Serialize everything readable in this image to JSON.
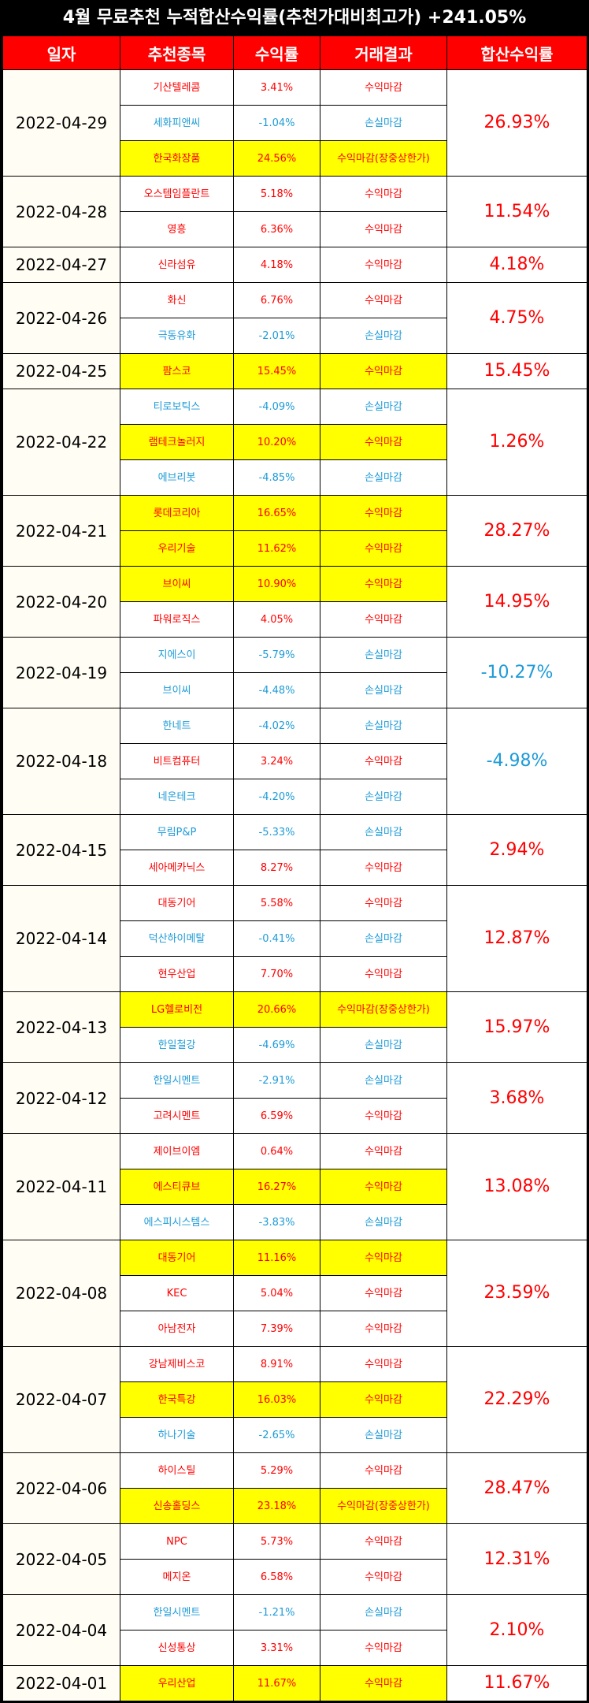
{
  "title": "4월 무료추천 누적합산수익률(추천가대비최고가) +241.05%",
  "headers": [
    "일자",
    "추천종목",
    "수익률",
    "거래결과",
    "합산수익률"
  ],
  "colors": {
    "header_bg": "#ff0000",
    "positive": "#ff0000",
    "negative": "#1e9bd7",
    "highlight": "#ffff00",
    "date_bg": "#fffdf4"
  },
  "groups": [
    {
      "date": "2022-04-29",
      "total": "26.93%",
      "rows": [
        {
          "stock": "기산텔레콤",
          "ret": "3.41%",
          "result": "수익마감",
          "hl": false
        },
        {
          "stock": "세화피앤씨",
          "ret": "-1.04%",
          "result": "손실마감",
          "hl": false
        },
        {
          "stock": "한국화장품",
          "ret": "24.56%",
          "result": "수익마감(장중상한가)",
          "hl": true
        }
      ]
    },
    {
      "date": "2022-04-28",
      "total": "11.54%",
      "rows": [
        {
          "stock": "오스템임플란트",
          "ret": "5.18%",
          "result": "수익마감",
          "hl": false
        },
        {
          "stock": "영흥",
          "ret": "6.36%",
          "result": "수익마감",
          "hl": false
        }
      ]
    },
    {
      "date": "2022-04-27",
      "total": "4.18%",
      "rows": [
        {
          "stock": "신라섬유",
          "ret": "4.18%",
          "result": "수익마감",
          "hl": false
        }
      ]
    },
    {
      "date": "2022-04-26",
      "total": "4.75%",
      "rows": [
        {
          "stock": "화신",
          "ret": "6.76%",
          "result": "수익마감",
          "hl": false
        },
        {
          "stock": "극동유화",
          "ret": "-2.01%",
          "result": "손실마감",
          "hl": false
        }
      ]
    },
    {
      "date": "2022-04-25",
      "total": "15.45%",
      "rows": [
        {
          "stock": "팜스코",
          "ret": "15.45%",
          "result": "수익마감",
          "hl": true
        }
      ]
    },
    {
      "date": "2022-04-22",
      "total": "1.26%",
      "rows": [
        {
          "stock": "티로보틱스",
          "ret": "-4.09%",
          "result": "손실마감",
          "hl": false
        },
        {
          "stock": "램테크놀러지",
          "ret": "10.20%",
          "result": "수익마감",
          "hl": true
        },
        {
          "stock": "에브리봇",
          "ret": "-4.85%",
          "result": "손실마감",
          "hl": false
        }
      ]
    },
    {
      "date": "2022-04-21",
      "total": "28.27%",
      "rows": [
        {
          "stock": "롯데코리아",
          "ret": "16.65%",
          "result": "수익마감",
          "hl": true
        },
        {
          "stock": "우리기술",
          "ret": "11.62%",
          "result": "수익마감",
          "hl": true
        }
      ]
    },
    {
      "date": "2022-04-20",
      "total": "14.95%",
      "rows": [
        {
          "stock": "브이씨",
          "ret": "10.90%",
          "result": "수익마감",
          "hl": true
        },
        {
          "stock": "파워로직스",
          "ret": "4.05%",
          "result": "수익마감",
          "hl": false
        }
      ]
    },
    {
      "date": "2022-04-19",
      "total": "-10.27%",
      "rows": [
        {
          "stock": "지에스이",
          "ret": "-5.79%",
          "result": "손실마감",
          "hl": false
        },
        {
          "stock": "브이씨",
          "ret": "-4.48%",
          "result": "손실마감",
          "hl": false
        }
      ]
    },
    {
      "date": "2022-04-18",
      "total": "-4.98%",
      "rows": [
        {
          "stock": "한네트",
          "ret": "-4.02%",
          "result": "손실마감",
          "hl": false
        },
        {
          "stock": "비트컴퓨터",
          "ret": "3.24%",
          "result": "수익마감",
          "hl": false
        },
        {
          "stock": "네온테크",
          "ret": "-4.20%",
          "result": "손실마감",
          "hl": false
        }
      ]
    },
    {
      "date": "2022-04-15",
      "total": "2.94%",
      "rows": [
        {
          "stock": "무림P&P",
          "ret": "-5.33%",
          "result": "손실마감",
          "hl": false
        },
        {
          "stock": "세아메카닉스",
          "ret": "8.27%",
          "result": "수익마감",
          "hl": false
        }
      ]
    },
    {
      "date": "2022-04-14",
      "total": "12.87%",
      "rows": [
        {
          "stock": "대동기어",
          "ret": "5.58%",
          "result": "수익마감",
          "hl": false
        },
        {
          "stock": "덕산하이메탈",
          "ret": "-0.41%",
          "result": "손실마감",
          "hl": false
        },
        {
          "stock": "현우산업",
          "ret": "7.70%",
          "result": "수익마감",
          "hl": false
        }
      ]
    },
    {
      "date": "2022-04-13",
      "total": "15.97%",
      "rows": [
        {
          "stock": "LG헬로비전",
          "ret": "20.66%",
          "result": "수익마감(장중상한가)",
          "hl": true
        },
        {
          "stock": "한일철강",
          "ret": "-4.69%",
          "result": "손실마감",
          "hl": false
        }
      ]
    },
    {
      "date": "2022-04-12",
      "total": "3.68%",
      "rows": [
        {
          "stock": "한일시멘트",
          "ret": "-2.91%",
          "result": "손실마감",
          "hl": false
        },
        {
          "stock": "고려시멘트",
          "ret": "6.59%",
          "result": "수익마감",
          "hl": false
        }
      ]
    },
    {
      "date": "2022-04-11",
      "total": "13.08%",
      "rows": [
        {
          "stock": "제이브이엠",
          "ret": "0.64%",
          "result": "수익마감",
          "hl": false
        },
        {
          "stock": "에스티큐브",
          "ret": "16.27%",
          "result": "수익마감",
          "hl": true
        },
        {
          "stock": "에스피시스템스",
          "ret": "-3.83%",
          "result": "손실마감",
          "hl": false
        }
      ]
    },
    {
      "date": "2022-04-08",
      "total": "23.59%",
      "rows": [
        {
          "stock": "대동기어",
          "ret": "11.16%",
          "result": "수익마감",
          "hl": true
        },
        {
          "stock": "KEC",
          "ret": "5.04%",
          "result": "수익마감",
          "hl": false
        },
        {
          "stock": "아남전자",
          "ret": "7.39%",
          "result": "수익마감",
          "hl": false
        }
      ]
    },
    {
      "date": "2022-04-07",
      "total": "22.29%",
      "rows": [
        {
          "stock": "강남제비스코",
          "ret": "8.91%",
          "result": "수익마감",
          "hl": false
        },
        {
          "stock": "한국특강",
          "ret": "16.03%",
          "result": "수익마감",
          "hl": true
        },
        {
          "stock": "하나기술",
          "ret": "-2.65%",
          "result": "손실마감",
          "hl": false
        }
      ]
    },
    {
      "date": "2022-04-06",
      "total": "28.47%",
      "rows": [
        {
          "stock": "하이스틸",
          "ret": "5.29%",
          "result": "수익마감",
          "hl": false
        },
        {
          "stock": "신송홀딩스",
          "ret": "23.18%",
          "result": "수익마감(장중상한가)",
          "hl": true
        }
      ]
    },
    {
      "date": "2022-04-05",
      "total": "12.31%",
      "rows": [
        {
          "stock": "NPC",
          "ret": "5.73%",
          "result": "수익마감",
          "hl": false
        },
        {
          "stock": "메지온",
          "ret": "6.58%",
          "result": "수익마감",
          "hl": false
        }
      ]
    },
    {
      "date": "2022-04-04",
      "total": "2.10%",
      "rows": [
        {
          "stock": "한일시멘트",
          "ret": "-1.21%",
          "result": "손실마감",
          "hl": false
        },
        {
          "stock": "신성통상",
          "ret": "3.31%",
          "result": "수익마감",
          "hl": false
        }
      ]
    },
    {
      "date": "2022-04-01",
      "total": "11.67%",
      "rows": [
        {
          "stock": "우리산업",
          "ret": "11.67%",
          "result": "수익마감",
          "hl": true
        }
      ]
    }
  ]
}
